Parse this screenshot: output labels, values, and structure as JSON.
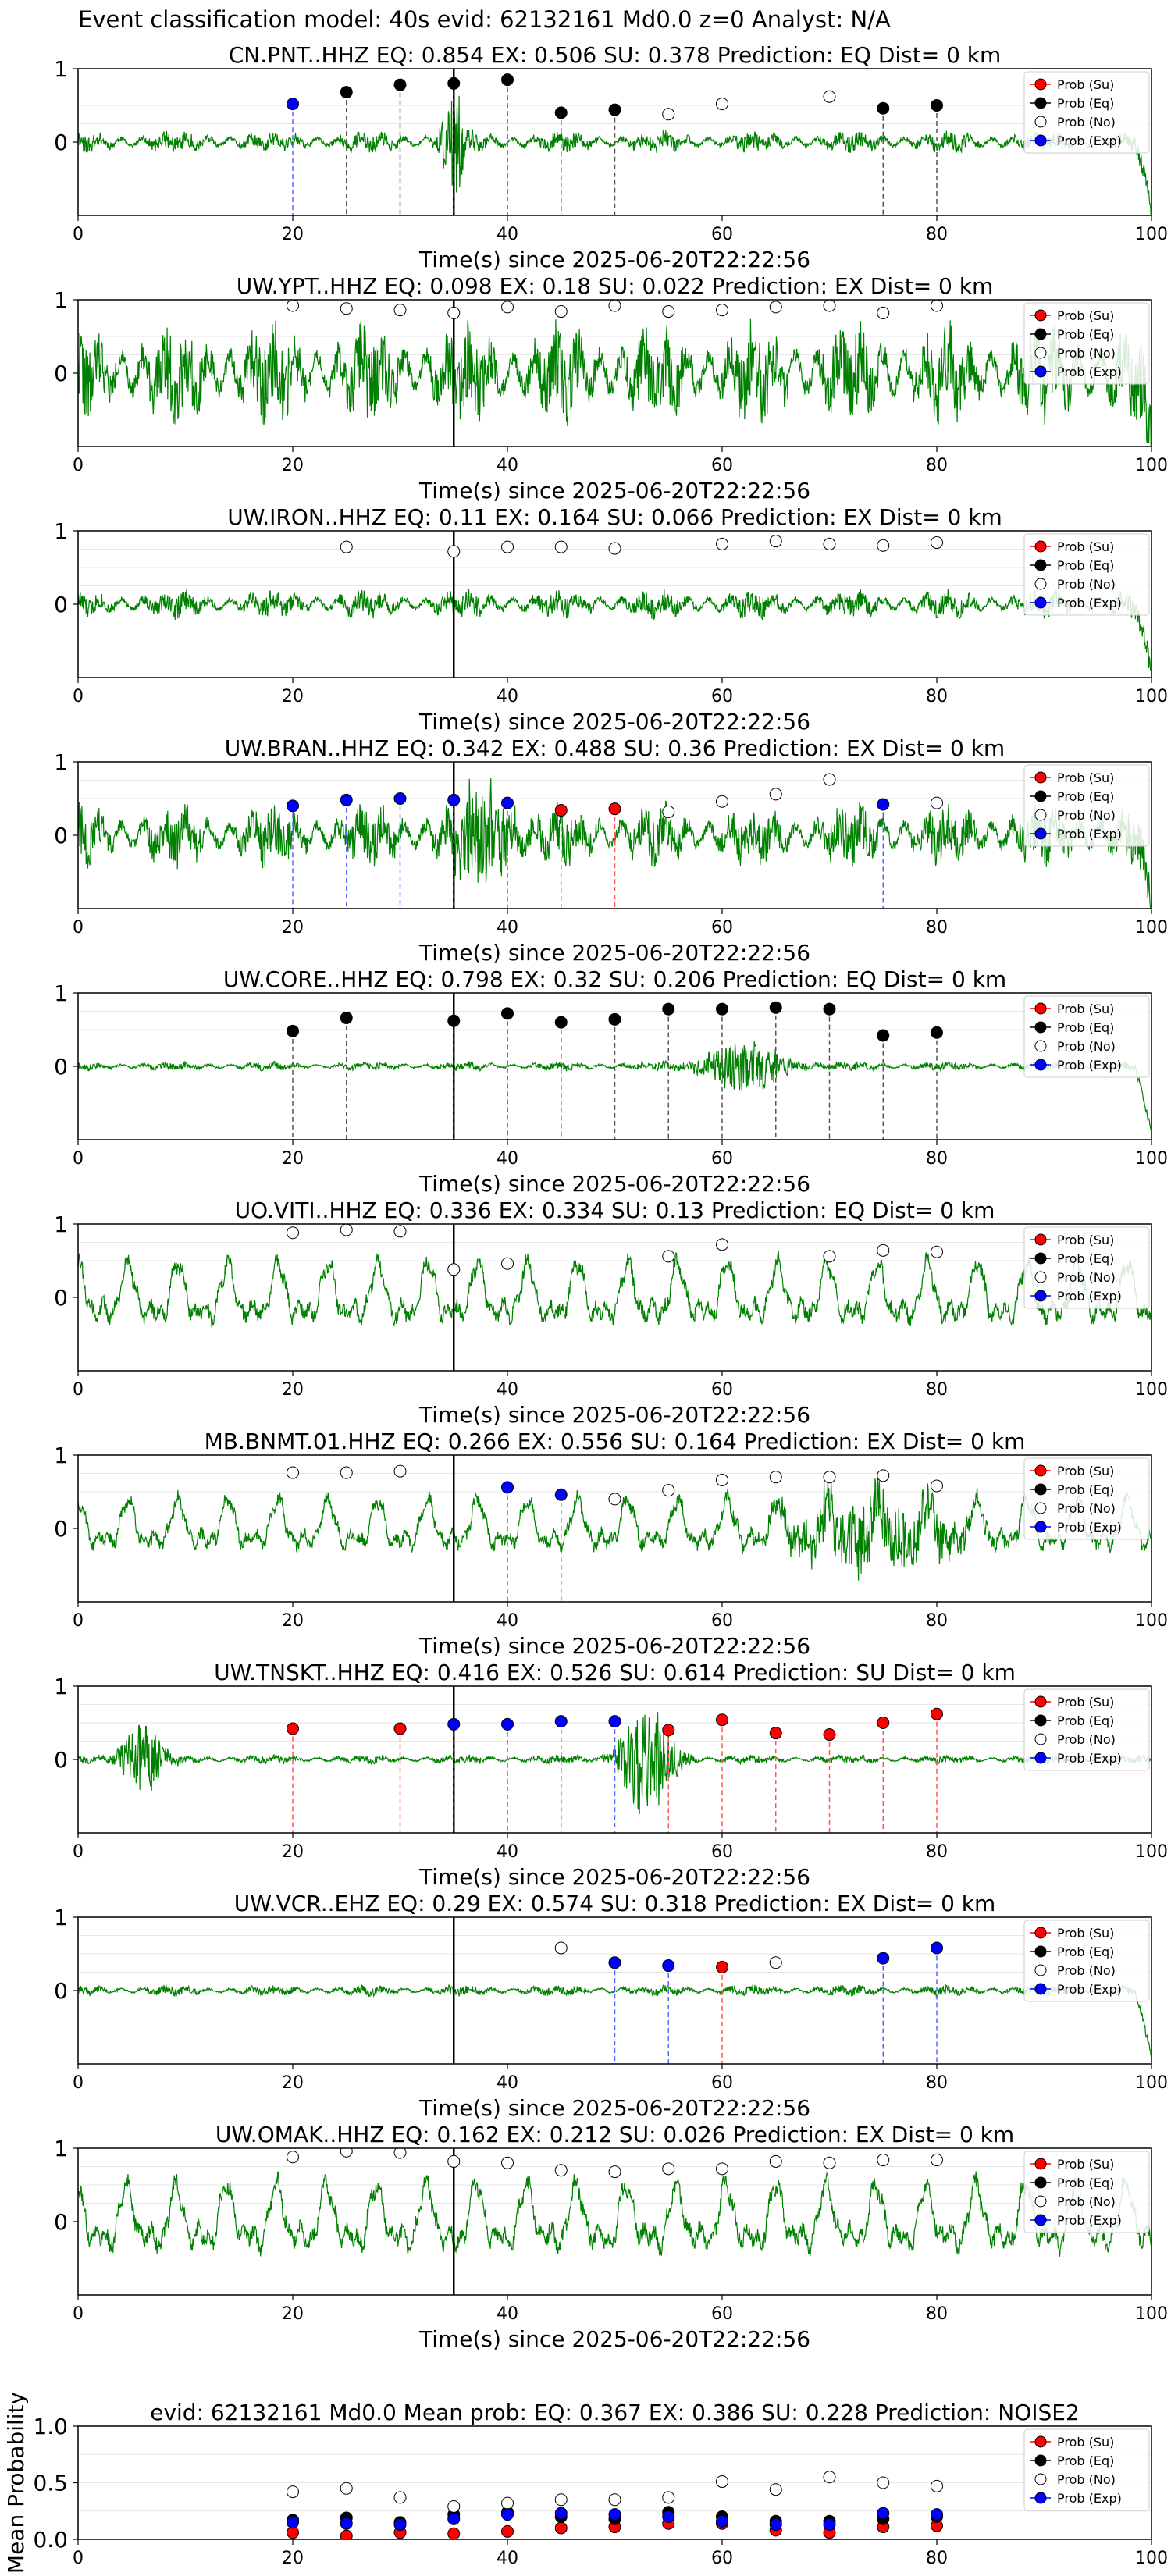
{
  "figure_title": "Event classification model: 40s evid: 62132161 Md0.0 z=0 Analyst: N/A",
  "colors": {
    "waveform": "#008000",
    "eq_marker": "#000000",
    "exp_marker": "#0000ff",
    "su_marker": "#ff0000",
    "noise_marker": "#ffffff",
    "vline_eq": "#555555",
    "vline_exp": "#5566ff",
    "vline_su": "#ff5555",
    "event_line": "#000000",
    "grid": "#e6e6e6"
  },
  "legend": [
    "Prob (Su)",
    "Prob (Eq)",
    "Prob (No)",
    "Prob (Exp)"
  ],
  "chart_data": [
    {
      "type": "line",
      "title": "CN.PNT..HHZ   EQ: 0.854  EX: 0.506  SU: 0.378   Prediction: EQ    Dist= 0 km",
      "xlabel": "Time(s) since 2025-06-20T22:22:56",
      "ylabel": "",
      "xlim": [
        0,
        100
      ],
      "ylim": [
        -1,
        1
      ],
      "xticks": [
        0,
        20,
        40,
        60,
        80,
        100
      ],
      "yticks": [
        0,
        1
      ],
      "event_time": 35,
      "waveform": {
        "style": "noisy",
        "amplitude": 0.12,
        "burst_at": 35,
        "burst_amplitude": 0.7,
        "burst_width": 1.2,
        "end_spike": true,
        "seed": 11
      },
      "points": [
        {
          "x": 20,
          "y": 0.52,
          "cls": "exp"
        },
        {
          "x": 25,
          "y": 0.68,
          "cls": "eq"
        },
        {
          "x": 30,
          "y": 0.78,
          "cls": "eq"
        },
        {
          "x": 35,
          "y": 0.8,
          "cls": "eq"
        },
        {
          "x": 40,
          "y": 0.85,
          "cls": "eq"
        },
        {
          "x": 45,
          "y": 0.4,
          "cls": "eq"
        },
        {
          "x": 50,
          "y": 0.44,
          "cls": "eq"
        },
        {
          "x": 55,
          "y": 0.38,
          "cls": "no"
        },
        {
          "x": 60,
          "y": 0.52,
          "cls": "no"
        },
        {
          "x": 70,
          "y": 0.62,
          "cls": "no"
        },
        {
          "x": 75,
          "y": 0.46,
          "cls": "eq"
        },
        {
          "x": 80,
          "y": 0.5,
          "cls": "eq"
        }
      ]
    },
    {
      "type": "line",
      "title": "UW.YPT..HHZ   EQ: 0.098  EX: 0.18  SU: 0.022   Prediction: EX    Dist= 0 km",
      "xlabel": "Time(s) since 2025-06-20T22:22:56",
      "ylabel": "",
      "xlim": [
        0,
        100
      ],
      "ylim": [
        -1,
        1
      ],
      "xticks": [
        0,
        20,
        40,
        60,
        80,
        100
      ],
      "yticks": [
        0,
        1
      ],
      "event_time": 35,
      "waveform": {
        "style": "noisy",
        "amplitude": 0.55,
        "burst_at": null,
        "end_spike": true,
        "seed": 22
      },
      "points": [
        {
          "x": 20,
          "y": 0.92,
          "cls": "no"
        },
        {
          "x": 25,
          "y": 0.88,
          "cls": "no"
        },
        {
          "x": 30,
          "y": 0.86,
          "cls": "no"
        },
        {
          "x": 35,
          "y": 0.82,
          "cls": "no"
        },
        {
          "x": 40,
          "y": 0.9,
          "cls": "no"
        },
        {
          "x": 45,
          "y": 0.84,
          "cls": "no"
        },
        {
          "x": 50,
          "y": 0.92,
          "cls": "no"
        },
        {
          "x": 55,
          "y": 0.84,
          "cls": "no"
        },
        {
          "x": 60,
          "y": 0.86,
          "cls": "no"
        },
        {
          "x": 65,
          "y": 0.9,
          "cls": "no"
        },
        {
          "x": 70,
          "y": 0.92,
          "cls": "no"
        },
        {
          "x": 75,
          "y": 0.82,
          "cls": "no"
        },
        {
          "x": 80,
          "y": 0.92,
          "cls": "no"
        }
      ]
    },
    {
      "type": "line",
      "title": "UW.IRON..HHZ   EQ: 0.11  EX: 0.164  SU: 0.066   Prediction: EX    Dist= 0 km",
      "xlabel": "Time(s) since 2025-06-20T22:22:56",
      "ylabel": "",
      "xlim": [
        0,
        100
      ],
      "ylim": [
        -1,
        1
      ],
      "xticks": [
        0,
        20,
        40,
        60,
        80,
        100
      ],
      "yticks": [
        0,
        1
      ],
      "event_time": 35,
      "waveform": {
        "style": "noisy",
        "amplitude": 0.16,
        "burst_at": null,
        "end_spike": true,
        "seed": 33
      },
      "points": [
        {
          "x": 25,
          "y": 0.78,
          "cls": "no"
        },
        {
          "x": 35,
          "y": 0.72,
          "cls": "no"
        },
        {
          "x": 40,
          "y": 0.78,
          "cls": "no"
        },
        {
          "x": 45,
          "y": 0.78,
          "cls": "no"
        },
        {
          "x": 50,
          "y": 0.76,
          "cls": "no"
        },
        {
          "x": 60,
          "y": 0.82,
          "cls": "no"
        },
        {
          "x": 65,
          "y": 0.86,
          "cls": "no"
        },
        {
          "x": 70,
          "y": 0.82,
          "cls": "no"
        },
        {
          "x": 75,
          "y": 0.8,
          "cls": "no"
        },
        {
          "x": 80,
          "y": 0.84,
          "cls": "no"
        }
      ]
    },
    {
      "type": "line",
      "title": "UW.BRAN..HHZ   EQ: 0.342  EX: 0.488  SU: 0.36   Prediction: EX    Dist= 0 km",
      "xlabel": "Time(s) since 2025-06-20T22:22:56",
      "ylabel": "",
      "xlim": [
        0,
        100
      ],
      "ylim": [
        -1,
        1
      ],
      "xticks": [
        0,
        20,
        40,
        60,
        80,
        100
      ],
      "yticks": [
        0,
        1
      ],
      "event_time": 35,
      "waveform": {
        "style": "noisy",
        "amplitude": 0.35,
        "burst_at": 38,
        "burst_amplitude": 0.6,
        "burst_width": 3,
        "end_spike": true,
        "seed": 44
      },
      "points": [
        {
          "x": 20,
          "y": 0.4,
          "cls": "exp"
        },
        {
          "x": 25,
          "y": 0.48,
          "cls": "exp"
        },
        {
          "x": 30,
          "y": 0.5,
          "cls": "exp"
        },
        {
          "x": 35,
          "y": 0.48,
          "cls": "exp"
        },
        {
          "x": 40,
          "y": 0.44,
          "cls": "exp"
        },
        {
          "x": 45,
          "y": 0.34,
          "cls": "su"
        },
        {
          "x": 50,
          "y": 0.36,
          "cls": "su"
        },
        {
          "x": 55,
          "y": 0.32,
          "cls": "no"
        },
        {
          "x": 60,
          "y": 0.46,
          "cls": "no"
        },
        {
          "x": 65,
          "y": 0.56,
          "cls": "no"
        },
        {
          "x": 70,
          "y": 0.76,
          "cls": "no"
        },
        {
          "x": 75,
          "y": 0.42,
          "cls": "exp"
        },
        {
          "x": 80,
          "y": 0.44,
          "cls": "no"
        }
      ]
    },
    {
      "type": "line",
      "title": "UW.CORE..HHZ   EQ: 0.798  EX: 0.32  SU: 0.206   Prediction: EQ    Dist= 0 km",
      "xlabel": "Time(s) since 2025-06-20T22:22:56",
      "ylabel": "",
      "xlim": [
        0,
        100
      ],
      "ylim": [
        -1,
        1
      ],
      "xticks": [
        0,
        20,
        40,
        60,
        80,
        100
      ],
      "yticks": [
        0,
        1
      ],
      "event_time": 35,
      "waveform": {
        "style": "noisy",
        "amplitude": 0.05,
        "burst_at": 62,
        "burst_amplitude": 0.35,
        "burst_width": 4,
        "end_spike": true,
        "seed": 55
      },
      "points": [
        {
          "x": 20,
          "y": 0.48,
          "cls": "eq"
        },
        {
          "x": 25,
          "y": 0.66,
          "cls": "eq"
        },
        {
          "x": 35,
          "y": 0.62,
          "cls": "eq"
        },
        {
          "x": 40,
          "y": 0.72,
          "cls": "eq"
        },
        {
          "x": 45,
          "y": 0.6,
          "cls": "eq"
        },
        {
          "x": 50,
          "y": 0.64,
          "cls": "eq"
        },
        {
          "x": 55,
          "y": 0.78,
          "cls": "eq"
        },
        {
          "x": 60,
          "y": 0.78,
          "cls": "eq"
        },
        {
          "x": 65,
          "y": 0.8,
          "cls": "eq"
        },
        {
          "x": 70,
          "y": 0.78,
          "cls": "eq"
        },
        {
          "x": 75,
          "y": 0.42,
          "cls": "eq"
        },
        {
          "x": 80,
          "y": 0.46,
          "cls": "eq"
        }
      ]
    },
    {
      "type": "line",
      "title": "UO.VITI..HHZ   EQ: 0.336  EX: 0.334  SU: 0.13   Prediction: EQ    Dist= 0 km",
      "xlabel": "Time(s) since 2025-06-20T22:22:56",
      "ylabel": "",
      "xlim": [
        0,
        100
      ],
      "ylim": [
        -1,
        1
      ],
      "xticks": [
        0,
        20,
        40,
        60,
        80,
        100
      ],
      "yticks": [
        0,
        1
      ],
      "event_time": 35,
      "waveform": {
        "style": "oscillating",
        "amplitude": 0.55,
        "burst_at": null,
        "end_spike": false,
        "seed": 66
      },
      "points": [
        {
          "x": 20,
          "y": 0.88,
          "cls": "no"
        },
        {
          "x": 25,
          "y": 0.92,
          "cls": "no"
        },
        {
          "x": 30,
          "y": 0.9,
          "cls": "no"
        },
        {
          "x": 35,
          "y": 0.38,
          "cls": "no"
        },
        {
          "x": 40,
          "y": 0.46,
          "cls": "no"
        },
        {
          "x": 55,
          "y": 0.56,
          "cls": "no"
        },
        {
          "x": 60,
          "y": 0.72,
          "cls": "no"
        },
        {
          "x": 70,
          "y": 0.56,
          "cls": "no"
        },
        {
          "x": 75,
          "y": 0.64,
          "cls": "no"
        },
        {
          "x": 80,
          "y": 0.62,
          "cls": "no"
        }
      ]
    },
    {
      "type": "line",
      "title": "MB.BNMT.01.HHZ   EQ: 0.266  EX: 0.556  SU: 0.164   Prediction: EX    Dist= 0 km",
      "xlabel": "Time(s) since 2025-06-20T22:22:56",
      "ylabel": "",
      "xlim": [
        0,
        100
      ],
      "ylim": [
        -1,
        1
      ],
      "xticks": [
        0,
        20,
        40,
        60,
        80,
        100
      ],
      "yticks": [
        0,
        1
      ],
      "event_time": 35,
      "waveform": {
        "style": "oscillating",
        "amplitude": 0.45,
        "burst_at": 74,
        "burst_amplitude": 0.45,
        "burst_width": 8,
        "end_spike": false,
        "seed": 77
      },
      "points": [
        {
          "x": 20,
          "y": 0.76,
          "cls": "no"
        },
        {
          "x": 25,
          "y": 0.76,
          "cls": "no"
        },
        {
          "x": 30,
          "y": 0.78,
          "cls": "no"
        },
        {
          "x": 40,
          "y": 0.56,
          "cls": "exp"
        },
        {
          "x": 45,
          "y": 0.46,
          "cls": "exp"
        },
        {
          "x": 50,
          "y": 0.4,
          "cls": "no"
        },
        {
          "x": 55,
          "y": 0.52,
          "cls": "no"
        },
        {
          "x": 60,
          "y": 0.66,
          "cls": "no"
        },
        {
          "x": 65,
          "y": 0.7,
          "cls": "no"
        },
        {
          "x": 70,
          "y": 0.7,
          "cls": "no"
        },
        {
          "x": 75,
          "y": 0.72,
          "cls": "no"
        },
        {
          "x": 80,
          "y": 0.58,
          "cls": "no"
        }
      ]
    },
    {
      "type": "line",
      "title": "UW.TNSKT..HHZ   EQ: 0.416  EX: 0.526  SU: 0.614   Prediction: SU    Dist= 0 km",
      "xlabel": "Time(s) since 2025-06-20T22:22:56",
      "ylabel": "",
      "xlim": [
        0,
        100
      ],
      "ylim": [
        -1,
        1
      ],
      "xticks": [
        0,
        20,
        40,
        60,
        80,
        100
      ],
      "yticks": [
        0,
        1
      ],
      "event_time": 35,
      "waveform": {
        "style": "noisy",
        "amplitude": 0.05,
        "burst_at": 53,
        "burst_amplitude": 0.8,
        "burst_width": 2.5,
        "second_burst_at": 6,
        "second_burst_amplitude": 0.5,
        "end_spike": false,
        "seed": 88
      },
      "points": [
        {
          "x": 20,
          "y": 0.42,
          "cls": "su"
        },
        {
          "x": 30,
          "y": 0.42,
          "cls": "su"
        },
        {
          "x": 35,
          "y": 0.48,
          "cls": "exp"
        },
        {
          "x": 40,
          "y": 0.48,
          "cls": "exp"
        },
        {
          "x": 45,
          "y": 0.52,
          "cls": "exp"
        },
        {
          "x": 50,
          "y": 0.52,
          "cls": "exp"
        },
        {
          "x": 55,
          "y": 0.4,
          "cls": "su"
        },
        {
          "x": 60,
          "y": 0.54,
          "cls": "su"
        },
        {
          "x": 65,
          "y": 0.36,
          "cls": "su"
        },
        {
          "x": 70,
          "y": 0.34,
          "cls": "su"
        },
        {
          "x": 75,
          "y": 0.5,
          "cls": "su"
        },
        {
          "x": 80,
          "y": 0.62,
          "cls": "su"
        }
      ]
    },
    {
      "type": "line",
      "title": "UW.VCR..EHZ   EQ: 0.29  EX: 0.574  SU: 0.318   Prediction: EX    Dist= 0 km",
      "xlabel": "Time(s) since 2025-06-20T22:22:56",
      "ylabel": "",
      "xlim": [
        0,
        100
      ],
      "ylim": [
        -1,
        1
      ],
      "xticks": [
        0,
        20,
        40,
        60,
        80,
        100
      ],
      "yticks": [
        0,
        1
      ],
      "event_time": 35,
      "waveform": {
        "style": "noisy",
        "amplitude": 0.06,
        "burst_at": null,
        "end_spike": true,
        "seed": 99
      },
      "points": [
        {
          "x": 45,
          "y": 0.58,
          "cls": "no"
        },
        {
          "x": 50,
          "y": 0.38,
          "cls": "exp"
        },
        {
          "x": 55,
          "y": 0.34,
          "cls": "exp"
        },
        {
          "x": 60,
          "y": 0.32,
          "cls": "su"
        },
        {
          "x": 65,
          "y": 0.38,
          "cls": "no"
        },
        {
          "x": 75,
          "y": 0.44,
          "cls": "exp"
        },
        {
          "x": 80,
          "y": 0.58,
          "cls": "exp"
        }
      ]
    },
    {
      "type": "line",
      "title": "UW.OMAK..HHZ   EQ: 0.162  EX: 0.212  SU: 0.026   Prediction: EX    Dist= 0 km",
      "xlabel": "Time(s) since 2025-06-20T22:22:56",
      "ylabel": "",
      "xlim": [
        0,
        100
      ],
      "ylim": [
        -1,
        1
      ],
      "xticks": [
        0,
        20,
        40,
        60,
        80,
        100
      ],
      "yticks": [
        0,
        1
      ],
      "event_time": 35,
      "waveform": {
        "style": "oscillating",
        "amplitude": 0.6,
        "burst_at": null,
        "end_spike": false,
        "seed": 111
      },
      "points": [
        {
          "x": 20,
          "y": 0.88,
          "cls": "no"
        },
        {
          "x": 25,
          "y": 0.96,
          "cls": "no"
        },
        {
          "x": 30,
          "y": 0.94,
          "cls": "no"
        },
        {
          "x": 35,
          "y": 0.82,
          "cls": "no"
        },
        {
          "x": 40,
          "y": 0.8,
          "cls": "no"
        },
        {
          "x": 45,
          "y": 0.7,
          "cls": "no"
        },
        {
          "x": 50,
          "y": 0.68,
          "cls": "no"
        },
        {
          "x": 55,
          "y": 0.72,
          "cls": "no"
        },
        {
          "x": 60,
          "y": 0.72,
          "cls": "no"
        },
        {
          "x": 65,
          "y": 0.82,
          "cls": "no"
        },
        {
          "x": 70,
          "y": 0.8,
          "cls": "no"
        },
        {
          "x": 75,
          "y": 0.84,
          "cls": "no"
        },
        {
          "x": 80,
          "y": 0.84,
          "cls": "no"
        }
      ]
    },
    {
      "type": "scatter",
      "title": "evid: 62132161  Md0.0   Mean prob:   EQ: 0.367  EX: 0.386  SU: 0.228   Prediction: NOISE2",
      "xlabel": "",
      "ylabel": "Mean Probability",
      "xlim": [
        0,
        100
      ],
      "ylim": [
        0,
        1
      ],
      "xticks": [
        0,
        20,
        40,
        60,
        80,
        100
      ],
      "yticks": [
        0.0,
        0.5,
        1.0
      ],
      "ytick_labels": [
        "0.0",
        "0.5",
        "1.0"
      ],
      "series": [
        {
          "name": "Prob (Su)",
          "cls": "su",
          "x": [
            20,
            25,
            30,
            35,
            40,
            45,
            50,
            55,
            60,
            65,
            70,
            75,
            80
          ],
          "y": [
            0.06,
            0.03,
            0.06,
            0.05,
            0.07,
            0.1,
            0.11,
            0.14,
            0.14,
            0.08,
            0.06,
            0.11,
            0.12
          ]
        },
        {
          "name": "Prob (Eq)",
          "cls": "eq",
          "x": [
            20,
            25,
            30,
            35,
            40,
            45,
            50,
            55,
            60,
            65,
            70,
            75,
            80
          ],
          "y": [
            0.17,
            0.19,
            0.15,
            0.22,
            0.24,
            0.2,
            0.18,
            0.24,
            0.2,
            0.16,
            0.16,
            0.18,
            0.2
          ]
        },
        {
          "name": "Prob (No)",
          "cls": "no",
          "x": [
            20,
            25,
            30,
            35,
            40,
            45,
            50,
            55,
            60,
            65,
            70,
            75,
            80
          ],
          "y": [
            0.42,
            0.45,
            0.37,
            0.29,
            0.32,
            0.35,
            0.35,
            0.37,
            0.51,
            0.44,
            0.55,
            0.5,
            0.47
          ]
        },
        {
          "name": "Prob (Exp)",
          "cls": "exp",
          "x": [
            20,
            25,
            30,
            35,
            40,
            45,
            50,
            55,
            60,
            65,
            70,
            75,
            80
          ],
          "y": [
            0.15,
            0.14,
            0.13,
            0.18,
            0.22,
            0.23,
            0.22,
            0.2,
            0.16,
            0.13,
            0.13,
            0.23,
            0.22
          ]
        }
      ]
    }
  ]
}
